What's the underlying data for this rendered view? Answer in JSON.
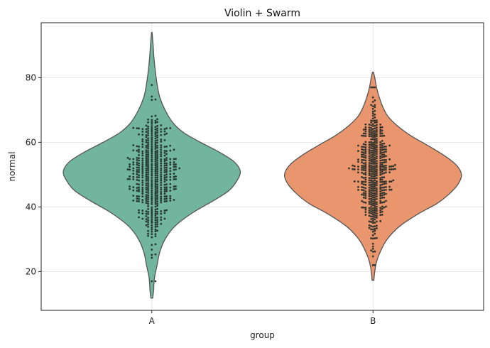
{
  "chart_data": {
    "type": "violin",
    "title": "Violin + Swarm",
    "xlabel": "group",
    "ylabel": "normal",
    "categories": [
      "A",
      "B"
    ],
    "ylim": [
      8,
      97
    ],
    "yticks": [
      20,
      40,
      60,
      80
    ],
    "grid": true,
    "colors": {
      "A": "#72b59e",
      "B": "#e9966f",
      "outline": "#555555",
      "points": "#1f2a26"
    },
    "violins": [
      {
        "category": "A",
        "range": [
          11.8,
          94.0
        ],
        "profile": [
          [
            11.8,
            0.01
          ],
          [
            14,
            0.02
          ],
          [
            18,
            0.03
          ],
          [
            22,
            0.06
          ],
          [
            26,
            0.09
          ],
          [
            30,
            0.15
          ],
          [
            34,
            0.26
          ],
          [
            38,
            0.45
          ],
          [
            42,
            0.7
          ],
          [
            45,
            0.87
          ],
          [
            48,
            0.96
          ],
          [
            51,
            1.0
          ],
          [
            54,
            0.93
          ],
          [
            57,
            0.76
          ],
          [
            60,
            0.55
          ],
          [
            63,
            0.36
          ],
          [
            66,
            0.24
          ],
          [
            70,
            0.15
          ],
          [
            74,
            0.09
          ],
          [
            78,
            0.06
          ],
          [
            82,
            0.04
          ],
          [
            86,
            0.025
          ],
          [
            90,
            0.015
          ],
          [
            94,
            0.003
          ]
        ]
      },
      {
        "category": "B",
        "range": [
          17.3,
          81.7
        ],
        "profile": [
          [
            17.3,
            0.01
          ],
          [
            20,
            0.02
          ],
          [
            23,
            0.04
          ],
          [
            26,
            0.08
          ],
          [
            30,
            0.16
          ],
          [
            34,
            0.3
          ],
          [
            38,
            0.52
          ],
          [
            41,
            0.72
          ],
          [
            44,
            0.86
          ],
          [
            47,
            0.96
          ],
          [
            50,
            1.0
          ],
          [
            53,
            0.94
          ],
          [
            56,
            0.8
          ],
          [
            59,
            0.62
          ],
          [
            62,
            0.43
          ],
          [
            65,
            0.28
          ],
          [
            68,
            0.17
          ],
          [
            71,
            0.11
          ],
          [
            74,
            0.07
          ],
          [
            77,
            0.04
          ],
          [
            80,
            0.02
          ],
          [
            81.7,
            0.005
          ]
        ]
      }
    ],
    "swarm": [
      {
        "category": "A",
        "n": 500,
        "mean": 50,
        "sd": 10,
        "min": 17,
        "max": 89
      },
      {
        "category": "B",
        "n": 500,
        "mean": 50,
        "sd": 9.5,
        "min": 22,
        "max": 77
      }
    ]
  }
}
